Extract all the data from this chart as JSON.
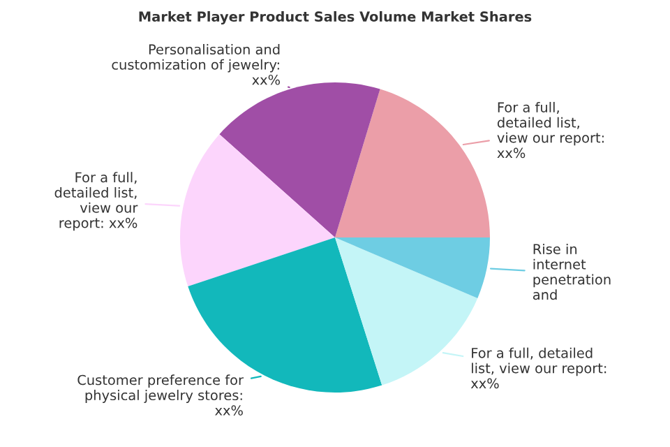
{
  "chart_data": {
    "type": "pie",
    "title": "Market Player Product Sales Volume Market Shares",
    "categories": [
      "For a full,\ndetailed list,\nview our report:\nxx%",
      "Personalisation and\ncustomization of jewelry:\nxx%",
      "For a full,\ndetailed list,\nview our\nreport: xx%",
      "Customer preference for\nphysical jewelry stores:\nxx%",
      "For a full, detailed\nlist, view our report:\nxx%",
      "Rise in\ninternet\npenetration\nand"
    ],
    "values": [
      20.3,
      18.1,
      16.7,
      24.8,
      13.7,
      6.4
    ],
    "colors": [
      "#eb9ea8",
      "#a04ea6",
      "#fcd5fc",
      "#12b8bb",
      "#c4f5f7",
      "#6ecde3"
    ]
  }
}
